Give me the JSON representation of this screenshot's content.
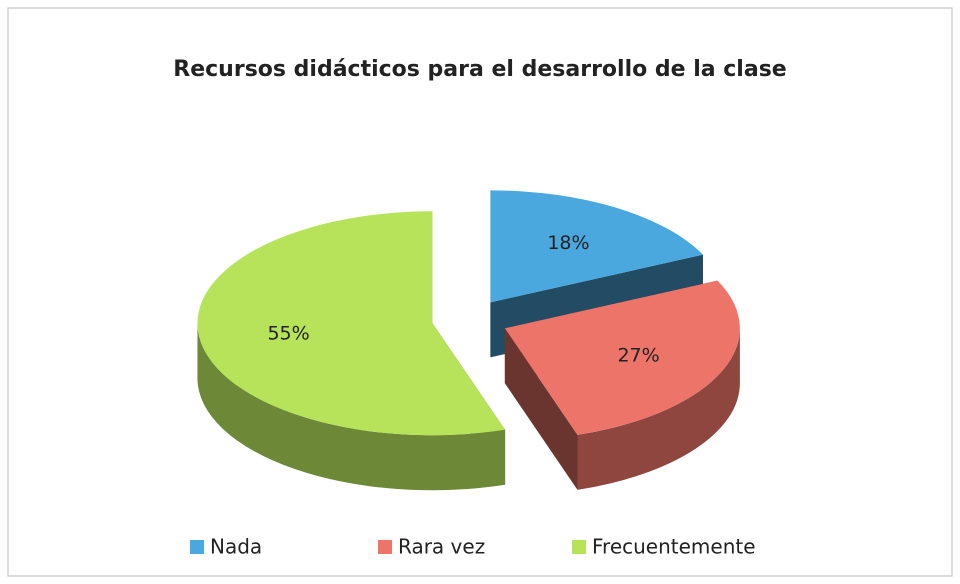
{
  "chart_data": {
    "type": "pie",
    "title": "Recursos didácticos para el desarrollo de la clase",
    "categories": [
      "Nada",
      "Rara vez",
      "Frecuentemente"
    ],
    "values": [
      18,
      27,
      55
    ],
    "value_labels": [
      "18%",
      "27%",
      "55%"
    ],
    "colors": [
      "#4aa8de",
      "#ec7468",
      "#b6e35a"
    ],
    "legend": "bottom"
  }
}
